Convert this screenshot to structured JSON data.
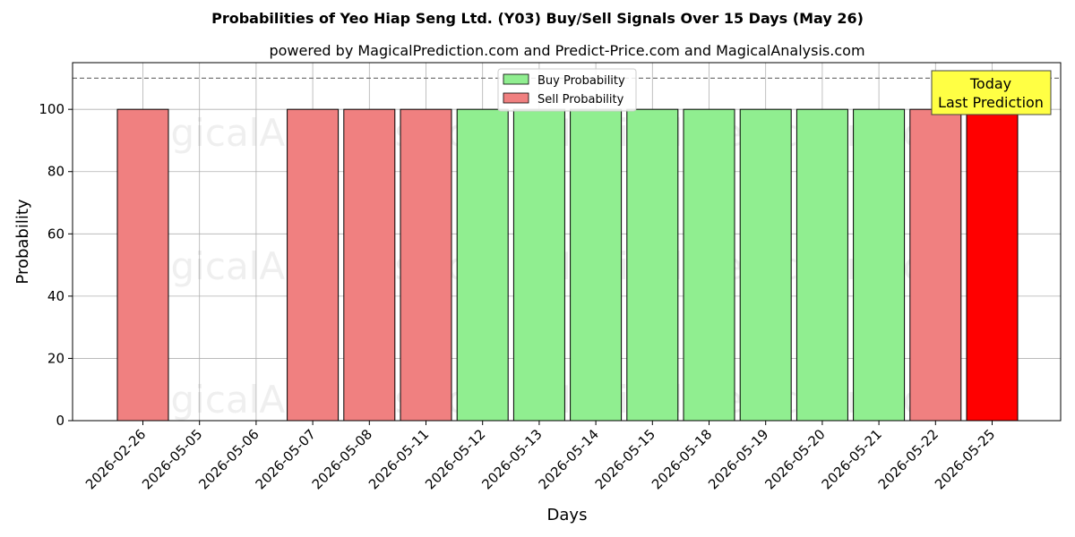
{
  "chart_data": {
    "type": "bar",
    "title": "Probabilities of Yeo Hiap Seng Ltd. (Y03) Buy/Sell Signals Over 15 Days (May 26)",
    "subtitle": "powered by MagicalPrediction.com and Predict-Price.com and MagicalAnalysis.com",
    "xlabel": "Days",
    "ylabel": "Probability",
    "ylim": [
      0,
      115
    ],
    "yticks": [
      0,
      20,
      40,
      60,
      80,
      100
    ],
    "reference_line": 110,
    "grid": true,
    "legend_position": "top-center",
    "categories": [
      "2026-02-26",
      "2026-05-05",
      "2026-05-06",
      "2026-05-07",
      "2026-05-08",
      "2026-05-11",
      "2026-05-12",
      "2026-05-13",
      "2026-05-14",
      "2026-05-15",
      "2026-05-18",
      "2026-05-19",
      "2026-05-20",
      "2026-05-21",
      "2026-05-22",
      "2026-05-25"
    ],
    "series": [
      {
        "name": "Buy Probability",
        "color": "#90ee90",
        "values": [
          0,
          0,
          0,
          0,
          0,
          0,
          100,
          100,
          100,
          100,
          100,
          100,
          100,
          100,
          0,
          0
        ]
      },
      {
        "name": "Sell Probability",
        "color": "#f08080",
        "values": [
          100,
          0,
          0,
          100,
          100,
          100,
          0,
          0,
          0,
          0,
          0,
          0,
          0,
          0,
          100,
          100
        ]
      }
    ],
    "highlight": {
      "category": "2026-05-25",
      "color": "#ff0000"
    },
    "annotation": {
      "line1": "Today",
      "line2": "Last Prediction",
      "background": "#ffff44"
    },
    "watermarks": [
      "MagicalAnalysis.com",
      "MagicalPrediction.com"
    ]
  }
}
